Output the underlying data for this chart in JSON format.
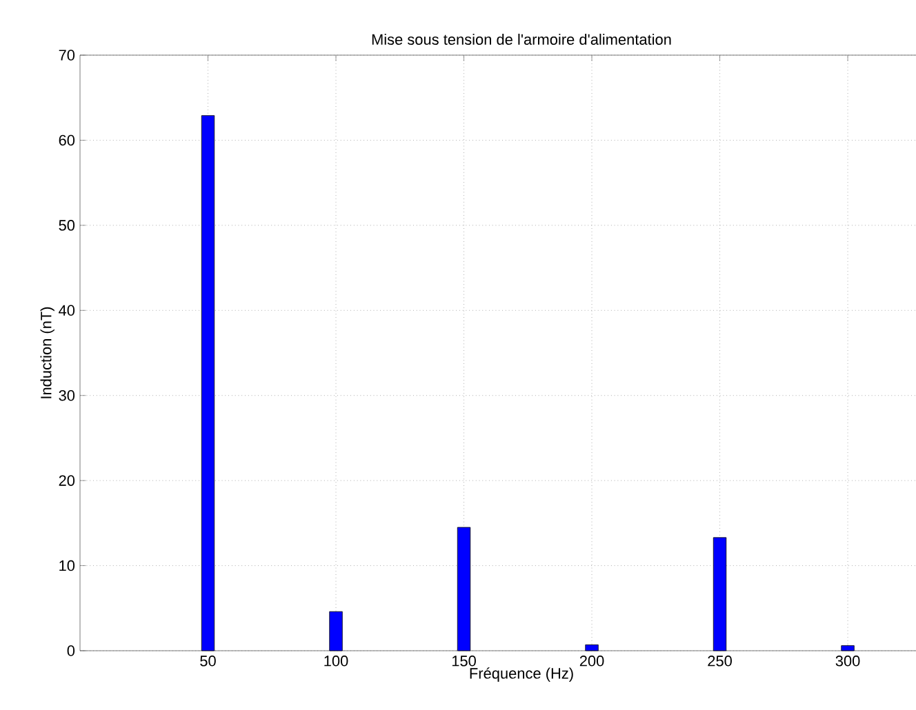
{
  "chart_data": {
    "type": "bar",
    "title": "Mise sous tension de l'armoire d'alimentation",
    "xlabel": "Fréquence (Hz)",
    "ylabel": "Induction (nT)",
    "x": [
      50,
      100,
      150,
      200,
      250,
      300
    ],
    "values": [
      62.9,
      4.6,
      14.5,
      0.7,
      13.3,
      0.6
    ],
    "color": "#0000ff",
    "xlim": [
      0,
      345
    ],
    "ylim": [
      0,
      70
    ],
    "xticks": [
      50,
      100,
      150,
      200,
      250,
      300
    ],
    "yticks": [
      0,
      10,
      20,
      30,
      40,
      50,
      60,
      70
    ],
    "grid": true
  }
}
